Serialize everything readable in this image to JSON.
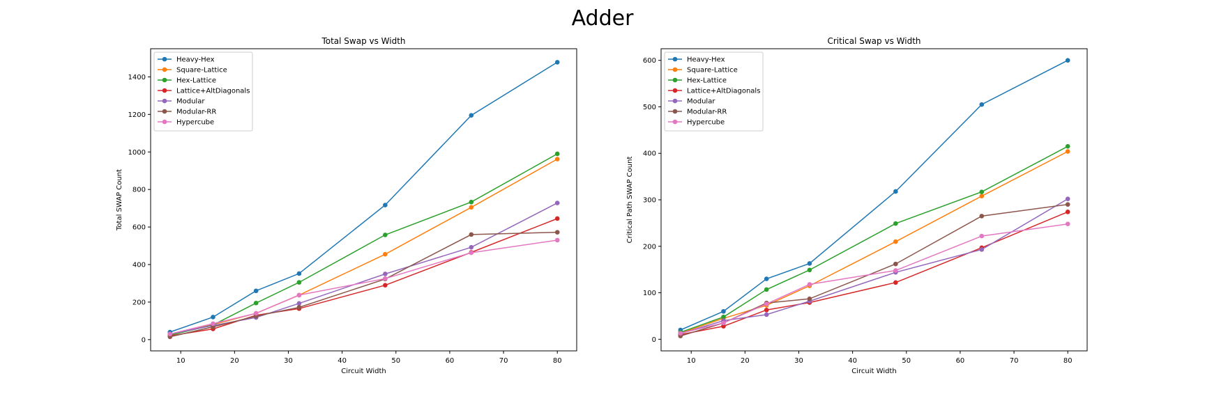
{
  "figure": {
    "title": "Adder"
  },
  "chart_data": [
    {
      "type": "line",
      "title": "Total Swap vs Width",
      "xlabel": "Circuit Width",
      "ylabel": "Total SWAP Count",
      "xlim": [
        4.4,
        83.6
      ],
      "ylim": [
        -60,
        1550
      ],
      "xticks": [
        10,
        20,
        30,
        40,
        50,
        60,
        70,
        80
      ],
      "yticks": [
        0,
        200,
        400,
        600,
        800,
        1000,
        1200,
        1400
      ],
      "grid": false,
      "legend": "top-left",
      "x": [
        8,
        16,
        24,
        32,
        48,
        64,
        80
      ],
      "series": [
        {
          "name": "Heavy-Hex",
          "color": "#1f77b4",
          "values": [
            40,
            120,
            260,
            352,
            717,
            1195,
            1478
          ]
        },
        {
          "name": "Square-Lattice",
          "color": "#ff7f0e",
          "values": [
            28,
            80,
            140,
            237,
            455,
            705,
            962
          ]
        },
        {
          "name": "Hex-Lattice",
          "color": "#2ca02c",
          "values": [
            24,
            78,
            195,
            305,
            558,
            733,
            990
          ]
        },
        {
          "name": "Lattice+AltDiagonals",
          "color": "#d62728",
          "values": [
            20,
            57,
            130,
            165,
            290,
            465,
            645
          ]
        },
        {
          "name": "Modular",
          "color": "#9467bd",
          "values": [
            30,
            75,
            118,
            193,
            350,
            492,
            728
          ]
        },
        {
          "name": "Modular-RR",
          "color": "#8c564b",
          "values": [
            15,
            68,
            125,
            172,
            323,
            560,
            572
          ]
        },
        {
          "name": "Hypercube",
          "color": "#e377c2",
          "values": [
            30,
            85,
            140,
            237,
            325,
            463,
            530
          ]
        }
      ]
    },
    {
      "type": "line",
      "title": "Critical Swap vs Width",
      "xlabel": "Circuit Width",
      "ylabel": "Critical Path SWAP Count",
      "xlim": [
        4.4,
        83.6
      ],
      "ylim": [
        -25,
        625
      ],
      "xticks": [
        10,
        20,
        30,
        40,
        50,
        60,
        70,
        80
      ],
      "yticks": [
        0,
        100,
        200,
        300,
        400,
        500,
        600
      ],
      "grid": false,
      "legend": "top-left",
      "x": [
        8,
        16,
        24,
        32,
        48,
        64,
        80
      ],
      "series": [
        {
          "name": "Heavy-Hex",
          "color": "#1f77b4",
          "values": [
            20,
            60,
            130,
            163,
            318,
            505,
            600
          ]
        },
        {
          "name": "Square-Lattice",
          "color": "#ff7f0e",
          "values": [
            13,
            45,
            73,
            115,
            210,
            308,
            404
          ]
        },
        {
          "name": "Hex-Lattice",
          "color": "#2ca02c",
          "values": [
            15,
            48,
            107,
            149,
            249,
            317,
            415
          ]
        },
        {
          "name": "Lattice+AltDiagonals",
          "color": "#d62728",
          "values": [
            10,
            28,
            63,
            79,
            122,
            197,
            274
          ]
        },
        {
          "name": "Modular",
          "color": "#9467bd",
          "values": [
            12,
            40,
            53,
            82,
            144,
            193,
            302
          ]
        },
        {
          "name": "Modular-RR",
          "color": "#8c564b",
          "values": [
            7,
            35,
            78,
            87,
            162,
            265,
            290
          ]
        },
        {
          "name": "Hypercube",
          "color": "#e377c2",
          "values": [
            13,
            35,
            76,
            118,
            148,
            222,
            248
          ]
        }
      ]
    }
  ]
}
